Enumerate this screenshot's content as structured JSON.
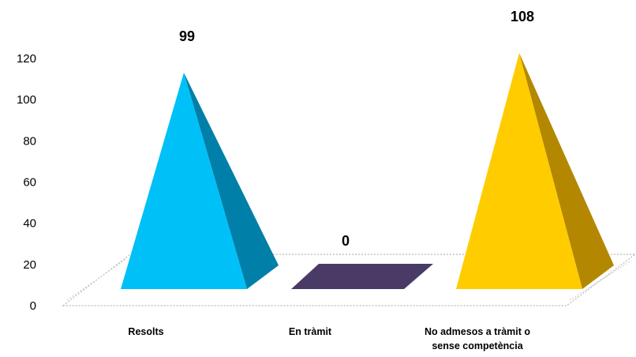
{
  "chart_data": {
    "type": "bar",
    "style": "3d-pyramid",
    "categories": [
      [
        "Resolts"
      ],
      [
        "En tràmit"
      ],
      [
        "No admesos a tràmit o",
        "sense competència"
      ]
    ],
    "values": [
      99,
      0,
      108
    ],
    "data_labels": [
      "99",
      "0",
      "108"
    ],
    "yticks": [
      "0",
      "20",
      "40",
      "60",
      "80",
      "100",
      "120"
    ],
    "ylim": [
      0,
      120
    ],
    "grid": false,
    "legend": "none",
    "colors": {
      "front": [
        "#00C0F8",
        "#4A3B66",
        "#FFCC00"
      ],
      "side": [
        "#007FA8",
        "#2E2444",
        "#B38800"
      ]
    }
  }
}
